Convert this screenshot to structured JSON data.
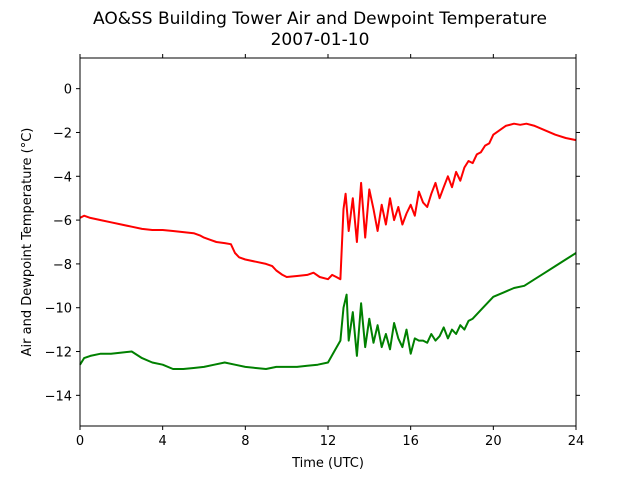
{
  "chart_data": {
    "type": "line",
    "title": "AO&SS Building Tower Air and Dewpoint Temperature",
    "subtitle": "2007-01-10",
    "xlabel": "Time (UTC)",
    "ylabel": "Air and Dewpoint Temperature (°C)",
    "xlim": [
      0,
      24
    ],
    "ylim": [
      -15.4,
      1.4
    ],
    "xticks": [
      0,
      4,
      8,
      12,
      16,
      20,
      24
    ],
    "yticks": [
      0,
      -2,
      -4,
      -6,
      -8,
      -10,
      -12,
      -14
    ],
    "grid": false,
    "series": [
      {
        "color": "#ff0000",
        "x": [
          0,
          0.2,
          0.5,
          1,
          1.5,
          2,
          2.5,
          3,
          3.5,
          4,
          4.5,
          5,
          5.5,
          5.8,
          6,
          6.3,
          6.6,
          7,
          7.3,
          7.5,
          7.7,
          8,
          8.5,
          9,
          9.3,
          9.5,
          9.8,
          10,
          10.5,
          11,
          11.3,
          11.6,
          12,
          12.2,
          12.4,
          12.6,
          12.75,
          12.85,
          13,
          13.2,
          13.4,
          13.6,
          13.8,
          14,
          14.2,
          14.4,
          14.6,
          14.8,
          15,
          15.2,
          15.4,
          15.6,
          15.8,
          16,
          16.2,
          16.4,
          16.6,
          16.8,
          17,
          17.2,
          17.4,
          17.6,
          17.8,
          18,
          18.2,
          18.4,
          18.6,
          18.8,
          19,
          19.2,
          19.4,
          19.6,
          19.8,
          20,
          20.3,
          20.6,
          21,
          21.3,
          21.6,
          22,
          22.5,
          23,
          23.5,
          24
        ],
        "y": [
          -5.9,
          -5.8,
          -5.9,
          -6.0,
          -6.1,
          -6.2,
          -6.3,
          -6.4,
          -6.45,
          -6.45,
          -6.5,
          -6.55,
          -6.6,
          -6.7,
          -6.8,
          -6.9,
          -7.0,
          -7.05,
          -7.1,
          -7.5,
          -7.7,
          -7.8,
          -7.9,
          -8.0,
          -8.1,
          -8.3,
          -8.5,
          -8.6,
          -8.55,
          -8.5,
          -8.4,
          -8.6,
          -8.7,
          -8.5,
          -8.6,
          -8.7,
          -5.5,
          -4.8,
          -6.5,
          -5.0,
          -7.0,
          -4.3,
          -6.8,
          -4.6,
          -5.5,
          -6.5,
          -5.3,
          -6.2,
          -5.0,
          -6.0,
          -5.4,
          -6.2,
          -5.7,
          -5.3,
          -5.8,
          -4.7,
          -5.2,
          -5.4,
          -4.8,
          -4.3,
          -5.0,
          -4.5,
          -4.0,
          -4.5,
          -3.8,
          -4.2,
          -3.6,
          -3.3,
          -3.4,
          -3.0,
          -2.9,
          -2.6,
          -2.5,
          -2.1,
          -1.9,
          -1.7,
          -1.6,
          -1.65,
          -1.6,
          -1.7,
          -1.9,
          -2.1,
          -2.25,
          -2.35
        ]
      },
      {
        "color": "#008000",
        "x": [
          0,
          0.2,
          0.5,
          1,
          1.5,
          2,
          2.5,
          3,
          3.5,
          4,
          4.5,
          5,
          5.5,
          6,
          6.5,
          7,
          7.5,
          8,
          8.5,
          9,
          9.5,
          10,
          10.5,
          11,
          11.5,
          12,
          12.3,
          12.6,
          12.75,
          12.9,
          13,
          13.2,
          13.4,
          13.6,
          13.8,
          14,
          14.2,
          14.4,
          14.6,
          14.8,
          15,
          15.2,
          15.4,
          15.6,
          15.8,
          16,
          16.2,
          16.4,
          16.6,
          16.8,
          17,
          17.2,
          17.4,
          17.6,
          17.8,
          18,
          18.2,
          18.4,
          18.6,
          18.8,
          19,
          19.5,
          20,
          20.5,
          21,
          21.5,
          22,
          22.5,
          23,
          23.5,
          24
        ],
        "y": [
          -12.6,
          -12.3,
          -12.2,
          -12.1,
          -12.1,
          -12.05,
          -12.0,
          -12.3,
          -12.5,
          -12.6,
          -12.8,
          -12.8,
          -12.75,
          -12.7,
          -12.6,
          -12.5,
          -12.6,
          -12.7,
          -12.75,
          -12.8,
          -12.7,
          -12.7,
          -12.7,
          -12.65,
          -12.6,
          -12.5,
          -12.0,
          -11.5,
          -10.0,
          -9.4,
          -11.5,
          -10.2,
          -12.2,
          -9.8,
          -11.8,
          -10.5,
          -11.6,
          -10.8,
          -11.8,
          -11.2,
          -11.9,
          -10.7,
          -11.4,
          -11.8,
          -11.0,
          -12.1,
          -11.4,
          -11.5,
          -11.5,
          -11.6,
          -11.2,
          -11.5,
          -11.3,
          -10.9,
          -11.4,
          -11.0,
          -11.2,
          -10.8,
          -11.0,
          -10.6,
          -10.5,
          -10.0,
          -9.5,
          -9.3,
          -9.1,
          -9.0,
          -8.7,
          -8.4,
          -8.1,
          -7.8,
          -7.5
        ]
      }
    ]
  }
}
